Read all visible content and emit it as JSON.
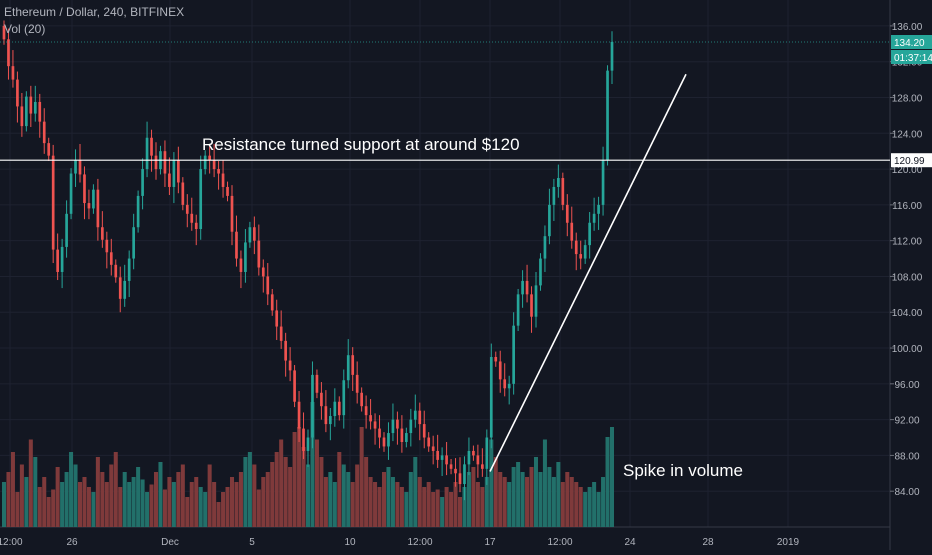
{
  "header": {
    "symbol_line": "Ethereum / Dollar, 240, BITFINEX",
    "volume_label": "Vol (20)"
  },
  "price_tags": {
    "last_price": "134.20",
    "countdown": "01:37:14",
    "level": "120.99"
  },
  "annotations": {
    "resistance": "Resistance turned support at around $120",
    "volume": "Spike in volume"
  },
  "colors": {
    "background": "#131722",
    "up": "#26a69a",
    "down": "#ef5350",
    "vol_up": "#22706a",
    "vol_down": "#7f3a3b",
    "grid": "#1e2230",
    "text": "#b2b5be",
    "last_price_tag": "#26a69a"
  },
  "chart_data": {
    "type": "candlestick",
    "title": "Ethereum / Dollar, 240, BITFINEX",
    "y_axis": {
      "min": 80,
      "max": 138,
      "ticks": [
        84,
        88,
        92,
        96,
        100,
        104,
        108,
        112,
        116,
        120,
        124,
        128,
        132,
        136
      ]
    },
    "x_axis": {
      "tick_labels": [
        "12:00",
        "26",
        "Dec",
        "5",
        "10",
        "12:00",
        "17",
        "12:00",
        "24",
        "28",
        "2019"
      ]
    },
    "grid": true,
    "close_series": [
      134.5,
      131.5,
      130.0,
      127.0,
      124.8,
      128.1,
      126.2,
      127.5,
      125.3,
      122.9,
      121.5,
      111.0,
      108.5,
      111.3,
      115.0,
      119.5,
      121.0,
      119.4,
      116.2,
      115.6,
      117.7,
      113.5,
      112.1,
      110.7,
      109.3,
      107.9,
      105.5,
      107.5,
      110.0,
      113.5,
      117.0,
      120.0,
      123.5,
      121.5,
      120.0,
      122.0,
      119.5,
      118.0,
      121.0,
      118.5,
      116.0,
      115.0,
      114.0,
      113.3,
      120.0,
      121.5,
      121.0,
      120.0,
      119.5,
      118.0,
      117.0,
      113.0,
      110.0,
      108.5,
      111.8,
      113.5,
      112.0,
      109.0,
      108.0,
      106.0,
      104.2,
      102.4,
      100.8,
      98.6,
      97.5,
      94.0,
      91.0,
      88.5,
      90.0,
      97.0,
      95.0,
      93.5,
      91.5,
      92.4,
      94.0,
      92.5,
      96.4,
      99.2,
      97.0,
      95.0,
      93.5,
      92.5,
      91.8,
      91.0,
      90.0,
      89.0,
      90.5,
      92.0,
      91.0,
      89.5,
      90.5,
      92.0,
      93.0,
      91.5,
      90.0,
      89.0,
      88.5,
      87.5,
      88.0,
      87.0,
      86.5,
      86.0,
      84.8,
      87.0,
      88.5,
      88.0,
      87.0,
      86.5,
      90.0,
      99.0,
      98.5,
      96.5,
      95.5,
      96.0,
      102.5,
      106.0,
      107.5,
      106.0,
      103.5,
      107.0,
      110.0,
      112.5,
      116.0,
      118.0,
      119.0,
      116.0,
      114.0,
      112.0,
      110.5,
      110.0,
      111.5,
      114.0,
      115.0,
      116.0,
      121.0,
      131.0,
      134.2
    ],
    "volume_series": [
      18,
      22,
      30,
      14,
      25,
      20,
      35,
      28,
      16,
      20,
      12,
      15,
      24,
      18,
      22,
      30,
      25,
      18,
      20,
      16,
      14,
      28,
      22,
      18,
      25,
      30,
      16,
      22,
      18,
      20,
      24,
      19,
      14,
      17,
      22,
      26,
      15,
      20,
      18,
      22,
      25,
      12,
      18,
      20,
      16,
      14,
      25,
      18,
      10,
      14,
      16,
      20,
      18,
      22,
      28,
      30,
      25,
      15,
      20,
      22,
      26,
      30,
      35,
      28,
      24,
      38,
      40,
      32,
      25,
      50,
      35,
      28,
      20,
      22,
      18,
      30,
      25,
      22,
      18,
      25,
      40,
      28,
      20,
      18,
      16,
      22,
      24,
      20,
      18,
      16,
      14,
      22,
      28,
      20,
      16,
      18,
      14,
      15,
      12,
      16,
      14,
      18,
      12,
      16,
      22,
      24,
      18,
      16,
      20,
      35,
      28,
      22,
      20,
      18,
      24,
      26,
      22,
      20,
      24,
      28,
      22,
      35,
      24,
      20,
      26,
      18,
      22,
      20,
      18,
      16,
      14,
      16,
      18,
      14,
      20,
      36,
      40
    ],
    "horizontal_level": 120.99,
    "last_price": 134.2
  }
}
